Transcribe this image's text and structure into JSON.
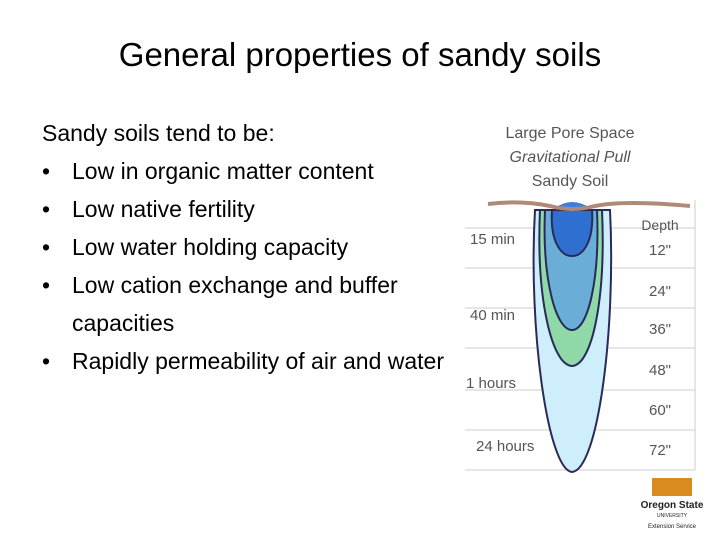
{
  "header": {
    "title": "General properties of sandy soils"
  },
  "body": {
    "intro": "Sandy soils tend to be:",
    "bullets": [
      "Low in organic matter content",
      "Low native fertility",
      "Low water holding capacity",
      "Low cation exchange and buffer capacities",
      "Rapidly permeability of air and water"
    ]
  },
  "diagram": {
    "title_lines": [
      "Large Pore Space",
      "Gravitational Pull",
      "Sandy Soil"
    ],
    "depth_header": "Depth",
    "depths": [
      "12\"",
      "24\"",
      "36\"",
      "48\"",
      "60\"",
      "72\""
    ],
    "times": [
      "15 min",
      "40 min",
      "1 hours",
      "24 hours"
    ]
  },
  "logo": {
    "name": "Oregon State",
    "sub": "UNIVERSITY",
    "unit": "Extension Service"
  }
}
